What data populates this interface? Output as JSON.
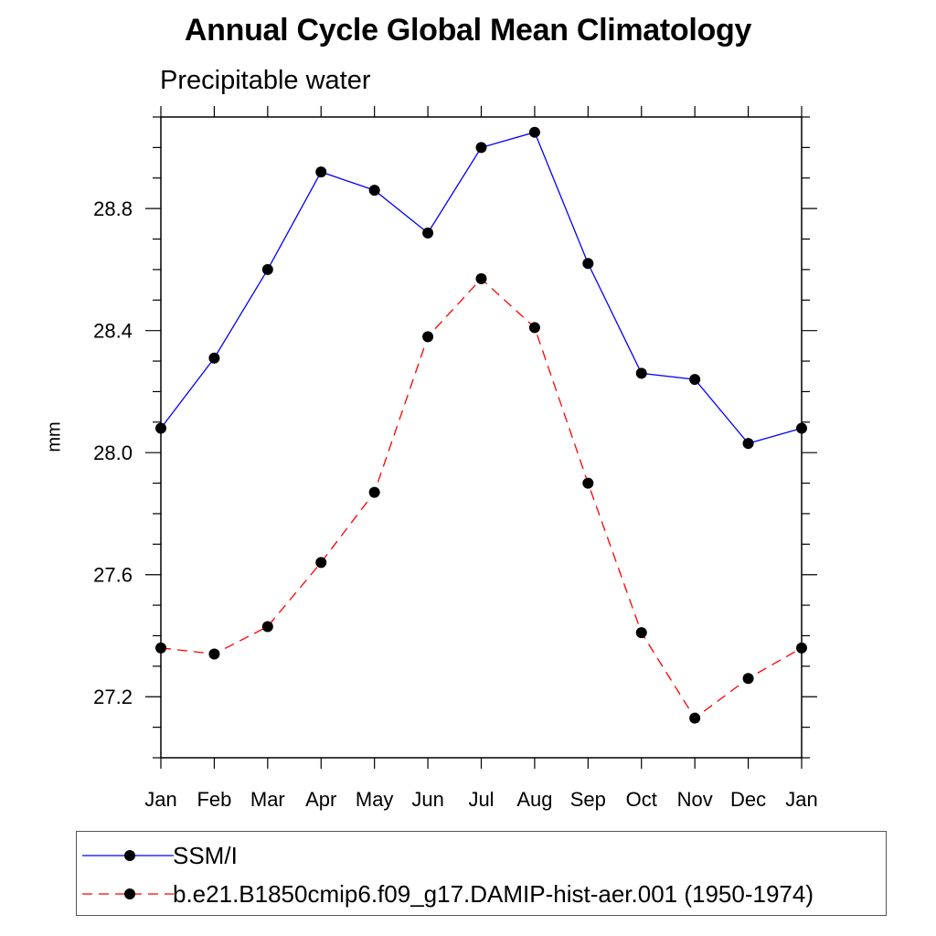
{
  "chart_data": {
    "type": "line",
    "title": "Annual Cycle Global Mean Climatology",
    "subtitle": "Precipitable water",
    "xlabel": "",
    "ylabel": "mm",
    "categories": [
      "Jan",
      "Feb",
      "Mar",
      "Apr",
      "May",
      "Jun",
      "Jul",
      "Aug",
      "Sep",
      "Oct",
      "Nov",
      "Dec",
      "Jan"
    ],
    "ylim": [
      27.0,
      29.1
    ],
    "yticks": [
      27.2,
      27.6,
      28.0,
      28.4,
      28.8
    ],
    "ytick_labels": [
      "27.2",
      "27.6",
      "28.0",
      "28.4",
      "28.8"
    ],
    "grid": false,
    "legend_position": "bottom",
    "series": [
      {
        "name": "SSM/I",
        "color": "#0000ff",
        "dash": "solid",
        "values": [
          28.08,
          28.31,
          28.6,
          28.92,
          28.86,
          28.72,
          29.0,
          29.05,
          28.62,
          28.26,
          28.24,
          28.03,
          28.08
        ]
      },
      {
        "name": "b.e21.B1850cmip6.f09_g17.DAMIP-hist-aer.001 (1950-1974)",
        "color": "#ff0000",
        "dash": "dashed",
        "values": [
          27.36,
          27.34,
          27.43,
          27.64,
          27.87,
          28.38,
          28.57,
          28.41,
          27.9,
          27.41,
          27.13,
          27.26,
          27.36
        ]
      }
    ]
  }
}
